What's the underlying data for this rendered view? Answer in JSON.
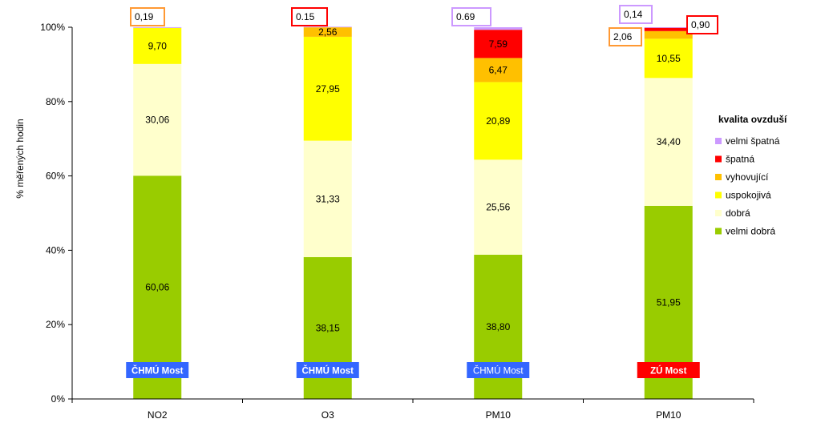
{
  "chart_data": {
    "type": "bar",
    "stacked": true,
    "ylabel": "% měřených hodin",
    "ylim": [
      0,
      100
    ],
    "yticks": [
      0,
      20,
      40,
      60,
      80,
      100
    ],
    "ytick_labels": [
      "0%",
      "20%",
      "40%",
      "60%",
      "80%",
      "100%"
    ],
    "categories": [
      "NO2",
      "O3",
      "PM10",
      "PM10"
    ],
    "station_labels": [
      "ČHMÚ Most",
      "ČHMÚ Most",
      "ČHMÚ Most",
      "ZÚ Most"
    ],
    "legend_title": "kvalita ovzduší",
    "legend_placement": "right",
    "series": [
      {
        "name": "velmi dobrá",
        "color": "#99cc00",
        "values": [
          60.06,
          38.15,
          38.8,
          51.95
        ],
        "labels": [
          "60,06",
          "38,15",
          "38,80",
          "51,95"
        ]
      },
      {
        "name": "dobrá",
        "color": "#ffffcc",
        "values": [
          30.06,
          31.33,
          25.56,
          34.4
        ],
        "labels": [
          "30,06",
          "31,33",
          "25,56",
          "34,40"
        ]
      },
      {
        "name": "uspokojivá",
        "color": "#ffff00",
        "values": [
          9.7,
          27.95,
          20.89,
          10.55
        ],
        "labels": [
          "9,70",
          "27,95",
          "20,89",
          "10,55"
        ]
      },
      {
        "name": "vyhovující",
        "color": "#ffc000",
        "values": [
          0,
          2.56,
          6.47,
          2.06
        ],
        "labels": [
          "",
          "2,56",
          "6,47",
          "2,06"
        ]
      },
      {
        "name": "špatná",
        "color": "#ff0000",
        "values": [
          0,
          0,
          7.59,
          0.9
        ],
        "labels": [
          "",
          "",
          "7,59",
          "0,90"
        ]
      },
      {
        "name": "velmi špatná",
        "color": "#cc99ff",
        "values": [
          0.19,
          0.15,
          0.69,
          0.14
        ],
        "labels": [
          "0,19",
          "0.15",
          "0.69",
          "0,14"
        ]
      }
    ]
  }
}
